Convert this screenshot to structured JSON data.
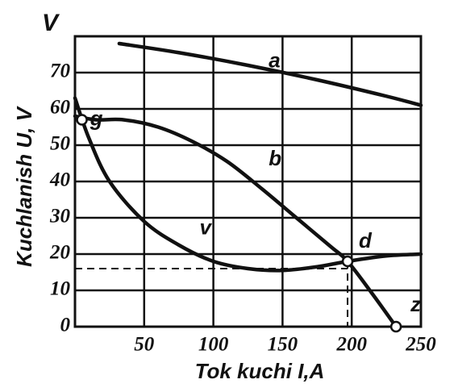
{
  "chart_data": {
    "type": "line",
    "y_unit": "V",
    "ylabel": "Kuchlanish U, V",
    "xlabel": "Tok kuchi I,A",
    "xlim": [
      0,
      250
    ],
    "ylim": [
      0,
      80
    ],
    "xticks": [
      50,
      100,
      150,
      200,
      250
    ],
    "yticks": [
      0,
      10,
      20,
      30,
      40,
      50,
      60,
      70
    ],
    "grid": true,
    "series": [
      {
        "name": "a",
        "color": "#111111",
        "x": [
          32,
          75,
          125,
          175,
          225,
          250
        ],
        "values": [
          78,
          75.5,
          72,
          68,
          63.5,
          61
        ]
      },
      {
        "name": "b",
        "color": "#111111",
        "x": [
          0,
          15,
          35,
          60,
          85,
          110,
          135,
          160,
          185,
          197,
          215,
          232
        ],
        "values": [
          58,
          57,
          57,
          55,
          51,
          45.5,
          38,
          30,
          22,
          18,
          9,
          0
        ]
      },
      {
        "name": "v",
        "color": "#111111",
        "x": [
          0,
          10,
          25,
          50,
          75,
          100,
          125,
          150,
          175,
          197,
          225,
          250
        ],
        "values": [
          63,
          52,
          40,
          29,
          22.5,
          18,
          16,
          15.5,
          16.5,
          18,
          19.5,
          20
        ]
      }
    ],
    "series_label_at": [
      {
        "x": 140,
        "y": 73
      },
      {
        "x": 140,
        "y": 46
      },
      {
        "x": 90,
        "y": 27
      }
    ],
    "dashed_lines": [
      {
        "x": [
          0,
          197
        ],
        "y": [
          16,
          16
        ]
      },
      {
        "x": [
          197,
          197
        ],
        "y": [
          18,
          0
        ]
      }
    ],
    "markers": [
      {
        "label": "g",
        "x": 5,
        "y": 57
      },
      {
        "label": "d",
        "x": 197,
        "y": 18
      },
      {
        "label": "z",
        "x": 232,
        "y": 0
      }
    ]
  }
}
